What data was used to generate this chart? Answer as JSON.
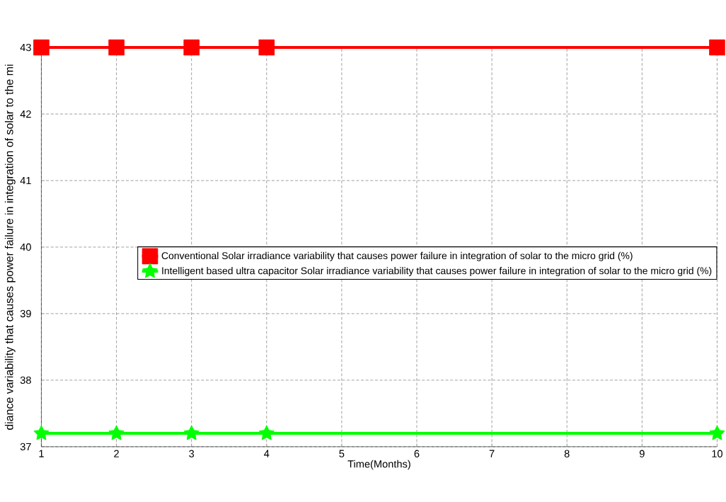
{
  "chart_data": {
    "type": "line",
    "xlabel": "Time(Months)",
    "ylabel": "diance variability that causes power failure in integration of solar to the mi",
    "x": [
      1,
      2,
      3,
      4,
      10
    ],
    "xlim": [
      1,
      10
    ],
    "xticks": [
      1,
      2,
      3,
      4,
      5,
      6,
      7,
      8,
      9,
      10
    ],
    "ylim": [
      37,
      43
    ],
    "yticks": [
      37,
      38,
      39,
      40,
      41,
      42,
      43
    ],
    "grid": true,
    "legend": "right",
    "line_style": "solid",
    "series": [
      {
        "name": "Conventional Solar irradiance variability that causes power failure in integration of solar to the micro grid (%)",
        "color": "#ff0000",
        "marker": "square",
        "values": [
          43,
          43,
          43,
          43,
          43
        ]
      },
      {
        "name": "Intelligent based ultra capacitor Solar irradiance variability that causes  power failure in integration of solar to the micro grid (%)",
        "color": "#00ff00",
        "marker": "star",
        "values": [
          37.2,
          37.2,
          37.2,
          37.2,
          37.2
        ]
      }
    ]
  }
}
